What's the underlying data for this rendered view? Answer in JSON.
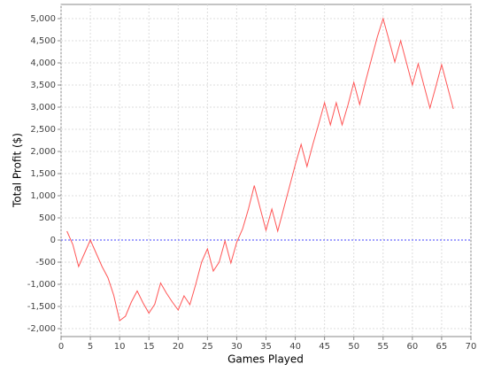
{
  "chart_data": {
    "type": "line",
    "x_label": "Games Played",
    "y_label": "Total Profit ($)",
    "x": [
      1,
      2,
      3,
      4,
      5,
      6,
      7,
      8,
      9,
      10,
      11,
      12,
      13,
      14,
      15,
      16,
      17,
      18,
      19,
      20,
      21,
      22,
      23,
      24,
      25,
      26,
      27,
      28,
      29,
      30,
      31,
      32,
      33,
      34,
      35,
      36,
      37,
      38,
      39,
      40,
      41,
      42,
      43,
      44,
      45,
      46,
      47,
      48,
      49,
      50,
      51,
      52,
      53,
      54,
      55,
      56,
      57,
      58,
      59,
      60,
      61,
      62,
      63,
      64,
      65,
      66,
      67
    ],
    "series": [
      {
        "color": "#ff5555",
        "values": [
          200,
          -100,
          -600,
          -300,
          0,
          -300,
          -600,
          -850,
          -1250,
          -1820,
          -1720,
          -1400,
          -1150,
          -1420,
          -1650,
          -1450,
          -970,
          -1200,
          -1400,
          -1580,
          -1260,
          -1460,
          -1000,
          -500,
          -200,
          -700,
          -500,
          -20,
          -520,
          -50,
          250,
          700,
          1230,
          720,
          220,
          700,
          200,
          700,
          1200,
          1700,
          2160,
          1660,
          2160,
          2620,
          3100,
          2600,
          3100,
          2600,
          3050,
          3560,
          3060,
          3580,
          4080,
          4580,
          5000,
          4520,
          4020,
          4500,
          4000,
          3500,
          3980,
          3480,
          2980,
          3460,
          3960,
          3460,
          2960
        ]
      }
    ],
    "xlim": [
      0,
      70
    ],
    "xticks": [
      0,
      5,
      10,
      15,
      20,
      25,
      30,
      35,
      40,
      45,
      50,
      55,
      60,
      65,
      70
    ],
    "ylim": [
      -2180,
      5320
    ],
    "yticks": [
      {
        "value": -2000,
        "label": "-2,000"
      },
      {
        "value": -1500,
        "label": "-1,500"
      },
      {
        "value": -1000,
        "label": "-1,000"
      },
      -500,
      0,
      500,
      {
        "value": 1000,
        "label": "1,000"
      },
      {
        "value": 1500,
        "label": "1,500"
      },
      {
        "value": 2000,
        "label": "2,000"
      },
      {
        "value": 2500,
        "label": "2,500"
      },
      {
        "value": 3000,
        "label": "3,000"
      },
      {
        "value": 3500,
        "label": "3,500"
      },
      {
        "value": 4000,
        "label": "4,000"
      },
      {
        "value": 4500,
        "label": "4,500"
      },
      {
        "value": 5000,
        "label": "5,000"
      }
    ],
    "grid": true,
    "marker": {
      "value": 0,
      "color": "#4444ff"
    }
  }
}
